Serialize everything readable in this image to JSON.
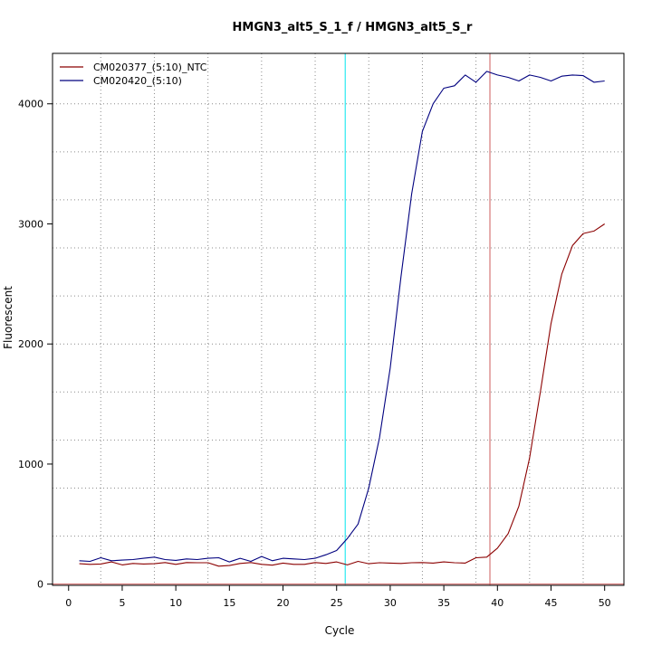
{
  "chart_data": {
    "type": "line",
    "title": "HMGN3_alt5_S_1_f / HMGN3_alt5_S_r",
    "xlabel": "Cycle",
    "ylabel": "Fluorescent",
    "xlim": [
      -1.5,
      51.8
    ],
    "ylim": [
      -10,
      4420
    ],
    "x_ticks": [
      0,
      5,
      10,
      15,
      20,
      25,
      30,
      35,
      40,
      45,
      50
    ],
    "x_tick_labels": [
      "0",
      "5",
      "10",
      "15",
      "20",
      "25",
      "30",
      "35",
      "40",
      "45",
      "50"
    ],
    "y_ticks": [
      0,
      1000,
      2000,
      3000,
      4000
    ],
    "y_tick_labels": [
      "0",
      "1000",
      "2000",
      "3000",
      "4000"
    ],
    "x_grid": [
      3,
      8,
      13,
      18,
      23,
      28,
      33,
      38,
      43,
      48
    ],
    "y_grid": [
      400,
      800,
      1200,
      1600,
      2000,
      2400,
      2800,
      3200,
      3600,
      4000
    ],
    "grid": true,
    "legend_position": "top-left",
    "series": [
      {
        "name": "CM020377_(5:10)_NTC",
        "color": "#8b0000",
        "x": [
          1,
          2,
          3,
          4,
          5,
          6,
          7,
          8,
          9,
          10,
          11,
          12,
          13,
          14,
          15,
          16,
          17,
          18,
          19,
          20,
          21,
          22,
          23,
          24,
          25,
          26,
          27,
          28,
          29,
          30,
          31,
          32,
          33,
          34,
          35,
          36,
          37,
          38,
          39,
          40,
          41,
          42,
          43,
          44,
          45,
          46,
          47,
          48,
          49,
          50
        ],
        "y": [
          170,
          165,
          168,
          185,
          160,
          172,
          168,
          170,
          180,
          165,
          180,
          178,
          178,
          150,
          155,
          172,
          180,
          165,
          158,
          175,
          165,
          165,
          180,
          172,
          185,
          160,
          190,
          170,
          178,
          175,
          172,
          178,
          180,
          175,
          185,
          178,
          175,
          220,
          225,
          300,
          420,
          650,
          1050,
          1600,
          2170,
          2580,
          2820,
          2920,
          2940,
          3000
        ]
      },
      {
        "name": "CM020420_(5:10)",
        "color": "#00007f",
        "x": [
          1,
          2,
          3,
          4,
          5,
          6,
          7,
          8,
          9,
          10,
          11,
          12,
          13,
          14,
          15,
          16,
          17,
          18,
          19,
          20,
          21,
          22,
          23,
          24,
          25,
          26,
          27,
          28,
          29,
          30,
          31,
          32,
          33,
          34,
          35,
          36,
          37,
          38,
          39,
          40,
          41,
          42,
          43,
          44,
          45,
          46,
          47,
          48,
          49,
          50
        ],
        "y": [
          195,
          190,
          220,
          195,
          200,
          205,
          215,
          225,
          205,
          198,
          210,
          205,
          215,
          220,
          185,
          215,
          190,
          230,
          195,
          215,
          210,
          205,
          215,
          245,
          280,
          380,
          500,
          800,
          1220,
          1800,
          2560,
          3250,
          3770,
          4000,
          4130,
          4150,
          4240,
          4180,
          4270,
          4240,
          4220,
          4190,
          4240,
          4220,
          4190,
          4230,
          4240,
          4235,
          4180,
          4190
        ]
      }
    ],
    "reference_lines": [
      {
        "axis": "x",
        "value": 25.8,
        "color": "#00e5ee"
      },
      {
        "axis": "x",
        "value": 39.3,
        "color": "#cd5c5c"
      },
      {
        "axis": "y",
        "value": 0,
        "color": "#cd5c5c"
      }
    ]
  }
}
